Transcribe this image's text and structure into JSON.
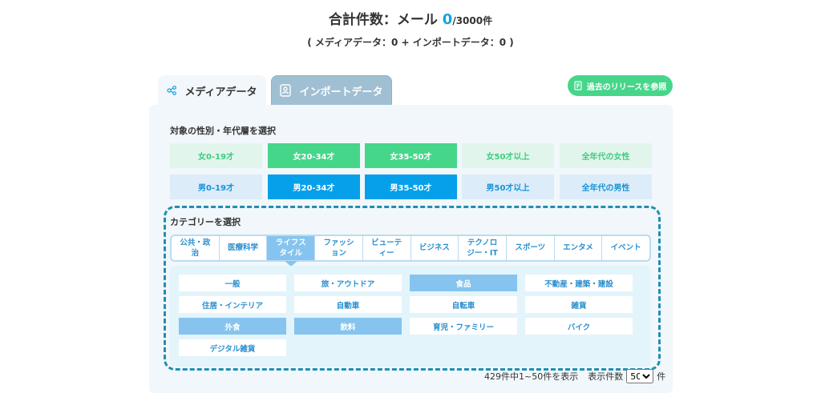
{
  "header": {
    "title_prefix": "合計件数：メール ",
    "count": "0",
    "total": "/3000件",
    "subtitle": "( メディアデータ：0 + インポートデータ：0 )"
  },
  "tabs": [
    {
      "label": "メディアデータ",
      "icon": "share-icon",
      "active": true
    },
    {
      "label": "インポートデータ",
      "icon": "person-card-icon",
      "active": false
    }
  ],
  "history_button": {
    "label": "過去のリリースを参照",
    "icon": "document-icon"
  },
  "gender": {
    "label": "対象の性別・年代層を選択",
    "female": [
      {
        "label": "女0-19才",
        "on": false
      },
      {
        "label": "女20-34才",
        "on": true
      },
      {
        "label": "女35-50才",
        "on": true
      },
      {
        "label": "女50才以上",
        "on": false
      },
      {
        "label": "全年代の女性",
        "on": false
      }
    ],
    "male": [
      {
        "label": "男0-19才",
        "on": false
      },
      {
        "label": "男20-34才",
        "on": true
      },
      {
        "label": "男35-50才",
        "on": true
      },
      {
        "label": "男50才以上",
        "on": false
      },
      {
        "label": "全年代の男性",
        "on": false
      }
    ]
  },
  "category": {
    "label": "カテゴリーを選択",
    "tabs": [
      "公共・政治",
      "医療科学",
      "ライフスタイル",
      "ファッション",
      "ビューティー",
      "ビジネス",
      "テクノロジー・IT",
      "スポーツ",
      "エンタメ",
      "イベント"
    ],
    "active_tab": 2,
    "items": [
      {
        "label": "一般",
        "on": false
      },
      {
        "label": "旅・アウトドア",
        "on": false
      },
      {
        "label": "食品",
        "on": true
      },
      {
        "label": "不動産・建築・建設",
        "on": false
      },
      {
        "label": "住居・インテリア",
        "on": false
      },
      {
        "label": "自動車",
        "on": false
      },
      {
        "label": "自転車",
        "on": false
      },
      {
        "label": "雑貨",
        "on": false
      },
      {
        "label": "外食",
        "on": true
      },
      {
        "label": "飲料",
        "on": true
      },
      {
        "label": "育児・ファミリー",
        "on": false
      },
      {
        "label": "バイク",
        "on": false
      },
      {
        "label": "デジタル雑貨",
        "on": false
      }
    ]
  },
  "footer": {
    "range": "429件中1~50件を表示",
    "per_page_label": "表示件数",
    "per_page": "50",
    "unit": "件"
  },
  "colors": {
    "accent": "#17a0e6",
    "green": "#46d68a",
    "dash": "#1f8fb5"
  }
}
